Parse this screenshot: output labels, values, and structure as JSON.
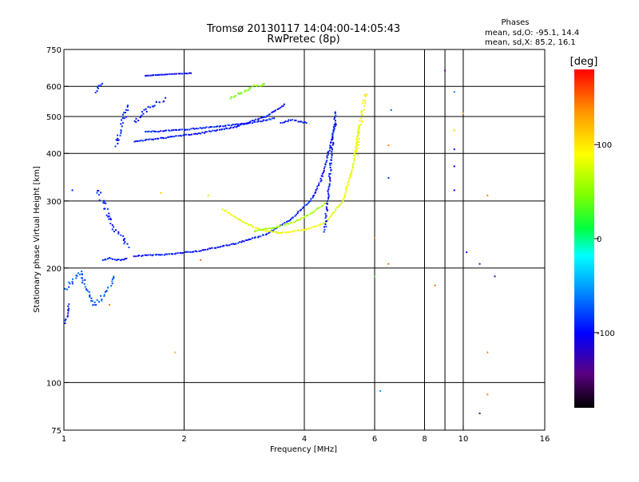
{
  "chart_data": {
    "type": "scatter",
    "title": "Tromsø 20130117 14:04:00-14:05:43",
    "subtitle": "RwPretec (8p)",
    "xlabel": "Frequency [MHz]",
    "ylabel": "Stationary phase Virtual Height [km]",
    "x_scale": "log2",
    "y_scale": "log",
    "xlim": [
      1,
      16
    ],
    "ylim": [
      75,
      750
    ],
    "x_ticks": [
      1,
      2,
      4,
      6,
      8,
      10,
      16
    ],
    "x_tick_labels": [
      "1",
      "2",
      "4",
      "6",
      "8",
      "10",
      "16"
    ],
    "y_ticks": [
      75,
      100,
      200,
      300,
      400,
      500,
      600,
      750
    ],
    "y_tick_labels": [
      "75",
      "100",
      "200",
      "300",
      "400",
      "500",
      "600",
      "750"
    ],
    "x_gridlines": [
      2,
      4,
      6,
      8,
      9,
      10
    ],
    "y_gridlines": [
      100,
      200,
      300,
      400,
      500,
      600
    ],
    "stats": {
      "heading": "Phases",
      "o_line": "mean, sd,O: -95.1, 14.4",
      "x_line": "mean, sd,X:  85.2, 16.1"
    },
    "colorbar": {
      "label": "[deg]",
      "range": [
        -180,
        180
      ],
      "ticks": [
        100,
        0,
        -100
      ],
      "tick_labels": [
        "100",
        "0",
        "-100"
      ]
    },
    "traces": [
      {
        "x": [
          1.0,
          1.05,
          1.1,
          1.15,
          1.2,
          1.25,
          1.3,
          1.35
        ],
        "y": [
          175,
          185,
          195,
          170,
          160,
          168,
          178,
          190
        ],
        "phase": -75,
        "jitter": 0.08
      },
      {
        "x": [
          1.0,
          1.02,
          1.03
        ],
        "y": [
          140,
          150,
          162
        ],
        "phase": -95,
        "jitter": 0.05
      },
      {
        "x": [
          1.2,
          1.25,
          1.3,
          1.35,
          1.4,
          1.45
        ],
        "y": [
          320,
          300,
          270,
          250,
          240,
          225
        ],
        "phase": -92,
        "jitter": 0.1
      },
      {
        "x": [
          1.25,
          1.3,
          1.35,
          1.4,
          1.45
        ],
        "y": [
          210,
          212,
          210,
          210,
          212
        ],
        "phase": -95,
        "jitter": 0.02
      },
      {
        "x": [
          1.5,
          1.8,
          2.2,
          2.7,
          3.2,
          3.7,
          4.2
        ],
        "y": [
          215,
          217,
          222,
          232,
          245,
          268,
          305
        ],
        "phase": -95,
        "jitter": 0.02
      },
      {
        "x": [
          4.2,
          4.4,
          4.6,
          4.8
        ],
        "y": [
          305,
          340,
          400,
          480
        ],
        "phase": -95,
        "jitter": 0.03
      },
      {
        "x": [
          2.5,
          2.8,
          3.1,
          3.5,
          4.0,
          4.5,
          5.0,
          5.3,
          5.5
        ],
        "y": [
          285,
          265,
          252,
          247,
          252,
          262,
          300,
          370,
          480
        ],
        "phase": 85,
        "jitter": 0.02
      },
      {
        "x": [
          5.4,
          5.5,
          5.6,
          5.7
        ],
        "y": [
          400,
          460,
          520,
          580
        ],
        "phase": 88,
        "jitter": 0.06
      },
      {
        "x": [
          3.0,
          3.4,
          3.8,
          4.2,
          4.6
        ],
        "y": [
          250,
          256,
          265,
          280,
          300
        ],
        "phase": 60,
        "jitter": 0.02
      },
      {
        "x": [
          1.5,
          1.8,
          2.2,
          2.7,
          3.2,
          3.6
        ],
        "y": [
          430,
          440,
          452,
          470,
          500,
          540
        ],
        "phase": -95,
        "jitter": 0.02
      },
      {
        "x": [
          1.6,
          2.0,
          2.4,
          2.9,
          3.4
        ],
        "y": [
          455,
          462,
          470,
          480,
          495
        ],
        "phase": -92,
        "jitter": 0.02
      },
      {
        "x": [
          1.6,
          1.8,
          2.0,
          2.1
        ],
        "y": [
          640,
          645,
          648,
          650
        ],
        "phase": -100,
        "jitter": 0.01
      },
      {
        "x": [
          1.35,
          1.4,
          1.45
        ],
        "y": [
          420,
          480,
          540
        ],
        "phase": -92,
        "jitter": 0.08
      },
      {
        "x": [
          1.2,
          1.25
        ],
        "y": [
          580,
          620
        ],
        "phase": -95,
        "jitter": 0.05
      },
      {
        "x": [
          3.5,
          3.7,
          3.9,
          4.1
        ],
        "y": [
          480,
          490,
          485,
          480
        ],
        "phase": -95,
        "jitter": 0.02
      },
      {
        "x": [
          4.5,
          4.6,
          4.7,
          4.8
        ],
        "y": [
          250,
          320,
          420,
          520
        ],
        "phase": -95,
        "jitter": 0.04
      },
      {
        "x": [
          1.5,
          1.6,
          1.7,
          1.8
        ],
        "y": [
          480,
          520,
          540,
          560
        ],
        "phase": -98,
        "jitter": 0.08
      },
      {
        "x": [
          2.6,
          2.8,
          3.0,
          3.2
        ],
        "y": [
          560,
          580,
          600,
          610
        ],
        "phase": 50,
        "jitter": 0.05
      }
    ],
    "scattered_points": [
      {
        "x": 9.0,
        "y": 660,
        "phase": -140
      },
      {
        "x": 9.5,
        "y": 580,
        "phase": -60
      },
      {
        "x": 9.5,
        "y": 460,
        "phase": 110
      },
      {
        "x": 9.5,
        "y": 410,
        "phase": -100
      },
      {
        "x": 9.5,
        "y": 370,
        "phase": -100
      },
      {
        "x": 9.5,
        "y": 320,
        "phase": -100
      },
      {
        "x": 10.0,
        "y": 510,
        "phase": 120
      },
      {
        "x": 10.2,
        "y": 220,
        "phase": -100
      },
      {
        "x": 11.0,
        "y": 205,
        "phase": -90
      },
      {
        "x": 11.5,
        "y": 310,
        "phase": 140
      },
      {
        "x": 11.5,
        "y": 120,
        "phase": 140
      },
      {
        "x": 11.5,
        "y": 93,
        "phase": 140
      },
      {
        "x": 11.0,
        "y": 83,
        "phase": -130
      },
      {
        "x": 12.0,
        "y": 190,
        "phase": -140
      },
      {
        "x": 6.0,
        "y": 240,
        "phase": 140
      },
      {
        "x": 6.0,
        "y": 190,
        "phase": 30
      },
      {
        "x": 6.2,
        "y": 95,
        "phase": -50
      },
      {
        "x": 6.5,
        "y": 420,
        "phase": 140
      },
      {
        "x": 6.5,
        "y": 345,
        "phase": -80
      },
      {
        "x": 6.5,
        "y": 205,
        "phase": 150
      },
      {
        "x": 6.6,
        "y": 520,
        "phase": -70
      },
      {
        "x": 8.5,
        "y": 180,
        "phase": 150
      },
      {
        "x": 9.4,
        "y": 75,
        "phase": -90
      },
      {
        "x": 1.9,
        "y": 120,
        "phase": 120
      },
      {
        "x": 1.95,
        "y": 75,
        "phase": -100
      },
      {
        "x": 1.75,
        "y": 315,
        "phase": 110
      },
      {
        "x": 2.3,
        "y": 310,
        "phase": 70
      },
      {
        "x": 1.05,
        "y": 320,
        "phase": -95
      },
      {
        "x": 1.3,
        "y": 160,
        "phase": 140
      },
      {
        "x": 2.2,
        "y": 210,
        "phase": 150
      }
    ]
  }
}
